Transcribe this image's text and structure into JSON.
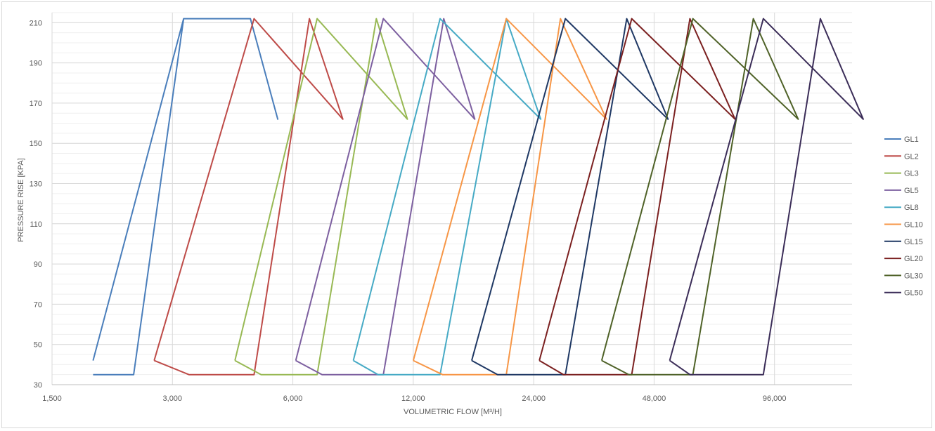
{
  "chart_data": {
    "type": "line",
    "title": "",
    "xlabel": "VOLUMETRIC FLOW [M³/H]",
    "ylabel": "PRESSURE RISE [KPA]",
    "x_scale": "log2",
    "xlim": [
      1500,
      150000
    ],
    "ylim": [
      30,
      215
    ],
    "x_ticks": [
      1500,
      3000,
      6000,
      12000,
      24000,
      48000,
      96000
    ],
    "x_tick_labels": [
      "1,500",
      "3,000",
      "6,000",
      "12,000",
      "24,000",
      "48,000",
      "96,000"
    ],
    "y_ticks": [
      30,
      50,
      70,
      90,
      110,
      130,
      150,
      170,
      190,
      210
    ],
    "grid": true,
    "legend": "right",
    "series": [
      {
        "name": "GL1",
        "color": "#4a7ebb",
        "x": [
          1900,
          2400,
          3200,
          4700,
          5500,
          4700,
          3200,
          1900
        ],
        "y": [
          35,
          35,
          212,
          212,
          162,
          212,
          212,
          42
        ]
      },
      {
        "name": "GL2",
        "color": "#be4b48",
        "x": [
          2700,
          3300,
          4800,
          6600,
          8000,
          4800,
          2700
        ],
        "y": [
          42,
          35,
          35,
          212,
          162,
          212,
          42
        ]
      },
      {
        "name": "GL3",
        "color": "#98b954",
        "x": [
          4300,
          5000,
          6900,
          9700,
          11600,
          6900,
          4300
        ],
        "y": [
          42,
          35,
          35,
          212,
          162,
          212,
          42
        ]
      },
      {
        "name": "GL5",
        "color": "#7d60a0",
        "x": [
          6100,
          7100,
          10100,
          14300,
          17100,
          10100,
          6100
        ],
        "y": [
          42,
          35,
          35,
          212,
          162,
          212,
          42
        ]
      },
      {
        "name": "GL8",
        "color": "#46aac5",
        "x": [
          8500,
          9800,
          14000,
          20500,
          25000,
          14000,
          8500
        ],
        "y": [
          42,
          35,
          35,
          212,
          162,
          212,
          42
        ]
      },
      {
        "name": "GL10",
        "color": "#f79646",
        "x": [
          12000,
          14200,
          20500,
          28000,
          36500,
          20500,
          12000
        ],
        "y": [
          42,
          35,
          35,
          212,
          162,
          212,
          42
        ]
      },
      {
        "name": "GL15",
        "color": "#1f3864",
        "x": [
          16800,
          19500,
          28800,
          41000,
          52000,
          28800,
          16800
        ],
        "y": [
          42,
          35,
          35,
          212,
          162,
          212,
          42
        ]
      },
      {
        "name": "GL20",
        "color": "#7b2020",
        "x": [
          24800,
          28500,
          42200,
          59000,
          76500,
          42200,
          24800
        ],
        "y": [
          42,
          35,
          35,
          212,
          162,
          212,
          42
        ]
      },
      {
        "name": "GL30",
        "color": "#4f6228",
        "x": [
          35500,
          41500,
          60000,
          85000,
          110000,
          60000,
          35500
        ],
        "y": [
          42,
          35,
          35,
          212,
          162,
          212,
          42
        ]
      },
      {
        "name": "GL50",
        "color": "#3b2d58",
        "x": [
          52500,
          59000,
          90000,
          125000,
          160000,
          90000,
          52500
        ],
        "y": [
          42,
          35,
          35,
          212,
          162,
          212,
          42
        ]
      }
    ]
  }
}
